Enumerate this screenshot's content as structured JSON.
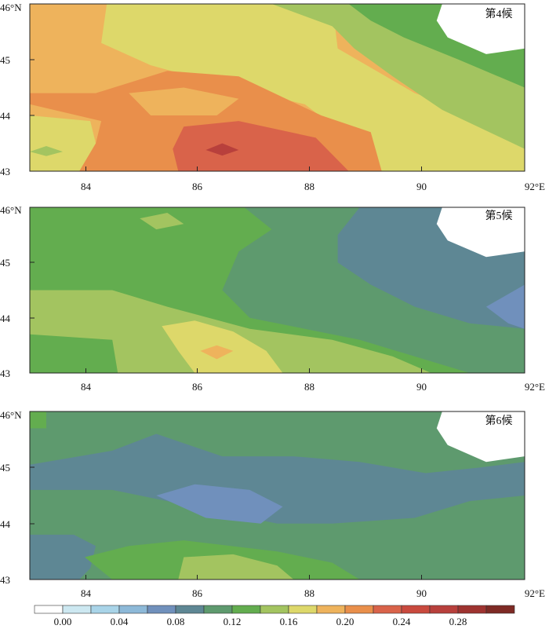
{
  "chart_data": [
    {
      "type": "heatmap",
      "panel_label": "第4候",
      "x_ticks": [
        "84",
        "86",
        "88",
        "90",
        "92°E"
      ],
      "y_ticks": [
        "46°N",
        "45",
        "44",
        "43"
      ],
      "xlim": [
        83,
        92
      ],
      "ylim": [
        43,
        46
      ],
      "regions": [
        {
          "color": "#EEB35C",
          "points": [
            [
              83,
              46
            ],
            [
              92,
              46
            ],
            [
              92,
              43
            ],
            [
              83,
              43
            ]
          ]
        },
        {
          "color": "#DDD86A",
          "points": [
            [
              84.4,
              46
            ],
            [
              88.5,
              46
            ],
            [
              88.6,
              45.2
            ],
            [
              90,
              44.4
            ],
            [
              92,
              43.7
            ],
            [
              92,
              43
            ],
            [
              89.4,
              43
            ],
            [
              88.8,
              43.6
            ],
            [
              88,
              44.2
            ],
            [
              86.3,
              44.6
            ],
            [
              85.2,
              44.9
            ],
            [
              84.3,
              45.3
            ]
          ]
        },
        {
          "color": "#A3C460",
          "points": [
            [
              87.4,
              46
            ],
            [
              92,
              46
            ],
            [
              92,
              43.4
            ],
            [
              90.5,
              44.1
            ],
            [
              89.6,
              44.7
            ],
            [
              88.9,
              45.2
            ],
            [
              88.5,
              45.6
            ]
          ]
        },
        {
          "color": "#63AD4F",
          "points": [
            [
              88.8,
              46
            ],
            [
              92,
              46
            ],
            [
              92,
              44.5
            ],
            [
              90.8,
              45.0
            ],
            [
              89.8,
              45.4
            ],
            [
              89.2,
              45.7
            ]
          ]
        },
        {
          "color": "#E98F4B",
          "points": [
            [
              83,
              44.4
            ],
            [
              84.2,
              44.4
            ],
            [
              85.5,
              44.8
            ],
            [
              86.8,
              44.7
            ],
            [
              88.3,
              44.0
            ],
            [
              89.2,
              43.7
            ],
            [
              89.4,
              43
            ],
            [
              83.6,
              43
            ],
            [
              84.2,
              43.5
            ],
            [
              84.3,
              43.9
            ],
            [
              83,
              44.2
            ]
          ]
        },
        {
          "color": "#EEB35C",
          "points": [
            [
              84.8,
              44.4
            ],
            [
              85.8,
              44.5
            ],
            [
              86.8,
              44.3
            ],
            [
              86.4,
              44.0
            ],
            [
              85.2,
              44.0
            ]
          ]
        },
        {
          "color": "#D9634A",
          "points": [
            [
              85.8,
              43.8
            ],
            [
              86.8,
              43.9
            ],
            [
              88.2,
              43.6
            ],
            [
              88.8,
              43
            ],
            [
              85.7,
              43
            ],
            [
              85.6,
              43.4
            ]
          ]
        },
        {
          "color": "#B8403C",
          "points": [
            [
              86.2,
              43.38
            ],
            [
              86.5,
              43.5
            ],
            [
              86.8,
              43.38
            ],
            [
              86.5,
              43.28
            ]
          ]
        },
        {
          "color": "#DDD86A",
          "points": [
            [
              83,
              44.0
            ],
            [
              84.1,
              43.9
            ],
            [
              84.2,
              43.5
            ],
            [
              83.9,
              43
            ],
            [
              83,
              43
            ]
          ]
        },
        {
          "color": "#A3C460",
          "points": [
            [
              83.0,
              43.35
            ],
            [
              83.3,
              43.45
            ],
            [
              83.6,
              43.35
            ],
            [
              83.3,
              43.27
            ]
          ]
        }
      ],
      "holes": [
        {
          "points": [
            [
              90.5,
              46
            ],
            [
              92,
              46
            ],
            [
              92,
              45.2
            ],
            [
              91.3,
              45.1
            ],
            [
              90.6,
              45.4
            ],
            [
              90.4,
              45.7
            ]
          ]
        }
      ]
    },
    {
      "type": "heatmap",
      "panel_label": "第5候",
      "x_ticks": [
        "84",
        "86",
        "88",
        "90",
        "92°E"
      ],
      "y_ticks": [
        "46°N",
        "45",
        "44",
        "43"
      ],
      "xlim": [
        83,
        92
      ],
      "ylim": [
        43,
        46
      ],
      "regions": [
        {
          "color": "#5E9A6E",
          "points": [
            [
              83,
              46
            ],
            [
              92,
              46
            ],
            [
              92,
              43
            ],
            [
              83,
              43
            ]
          ]
        },
        {
          "color": "#63AD4F",
          "points": [
            [
              83,
              46
            ],
            [
              86.9,
              46
            ],
            [
              87.4,
              45.6
            ],
            [
              86.8,
              45.2
            ],
            [
              86.5,
              44.5
            ],
            [
              87.0,
              44.0
            ],
            [
              88.0,
              43.8
            ],
            [
              89.0,
              43.6
            ],
            [
              90.0,
              43.3
            ],
            [
              91.0,
              43
            ],
            [
              83,
              43
            ]
          ]
        },
        {
          "color": "#5E8794",
          "points": [
            [
              89.0,
              46
            ],
            [
              92,
              46
            ],
            [
              92,
              43.8
            ],
            [
              91.0,
              43.9
            ],
            [
              90.0,
              44.2
            ],
            [
              89.2,
              44.6
            ],
            [
              88.6,
              45.0
            ],
            [
              88.6,
              45.5
            ]
          ]
        },
        {
          "color": "#7090BC",
          "points": [
            [
              91.3,
              44.2
            ],
            [
              92,
              44.6
            ],
            [
              92,
              43.8
            ],
            [
              91.7,
              43.9
            ]
          ]
        },
        {
          "color": "#A3C460",
          "points": [
            [
              83,
              44.5
            ],
            [
              84.5,
              44.5
            ],
            [
              85.5,
              44.2
            ],
            [
              87.0,
              43.8
            ],
            [
              88.5,
              43.6
            ],
            [
              89.6,
              43.3
            ],
            [
              90.3,
              43
            ],
            [
              84.6,
              43
            ],
            [
              84.5,
              43.6
            ],
            [
              83,
              43.7
            ]
          ]
        },
        {
          "color": "#A3C460",
          "points": [
            [
              85.0,
              45.8
            ],
            [
              85.5,
              45.9
            ],
            [
              85.8,
              45.7
            ],
            [
              85.3,
              45.6
            ]
          ]
        },
        {
          "color": "#DDD86A",
          "points": [
            [
              85.4,
              43.85
            ],
            [
              86.0,
              43.95
            ],
            [
              86.7,
              43.75
            ],
            [
              87.3,
              43.4
            ],
            [
              87.6,
              43.0
            ],
            [
              86.0,
              43.0
            ],
            [
              85.7,
              43.4
            ]
          ]
        },
        {
          "color": "#EEB35C",
          "points": [
            [
              86.1,
              43.4
            ],
            [
              86.4,
              43.5
            ],
            [
              86.7,
              43.4
            ],
            [
              86.4,
              43.25
            ]
          ]
        }
      ],
      "holes": [
        {
          "points": [
            [
              90.5,
              46
            ],
            [
              92,
              46
            ],
            [
              92,
              45.2
            ],
            [
              91.3,
              45.1
            ],
            [
              90.6,
              45.4
            ],
            [
              90.4,
              45.7
            ]
          ]
        }
      ]
    },
    {
      "type": "heatmap",
      "panel_label": "第6候",
      "x_ticks": [
        "84",
        "86",
        "88",
        "90",
        "92°E"
      ],
      "y_ticks": [
        "46°N",
        "45",
        "44",
        "43"
      ],
      "xlim": [
        83,
        92
      ],
      "ylim": [
        43,
        46
      ],
      "regions": [
        {
          "color": "#5E9A6E",
          "points": [
            [
              83,
              46
            ],
            [
              92,
              46
            ],
            [
              92,
              43
            ],
            [
              83,
              43
            ]
          ]
        },
        {
          "color": "#5E8794",
          "points": [
            [
              83,
              45.05
            ],
            [
              84.5,
              45.3
            ],
            [
              85.3,
              45.6
            ],
            [
              86.5,
              45.2
            ],
            [
              87.8,
              45.2
            ],
            [
              89.0,
              45.1
            ],
            [
              90.2,
              44.9
            ],
            [
              91.2,
              45.0
            ],
            [
              92,
              45.1
            ],
            [
              92,
              44.5
            ],
            [
              91.0,
              44.4
            ],
            [
              90.0,
              44.1
            ],
            [
              88.5,
              44.0
            ],
            [
              87.5,
              44.0
            ],
            [
              86.0,
              44.3
            ],
            [
              84.5,
              44.6
            ],
            [
              83,
              44.6
            ]
          ]
        },
        {
          "color": "#7090BC",
          "points": [
            [
              85.3,
              44.5
            ],
            [
              86.0,
              44.7
            ],
            [
              87.0,
              44.6
            ],
            [
              87.6,
              44.3
            ],
            [
              87.2,
              44.0
            ],
            [
              86.2,
              44.1
            ]
          ]
        },
        {
          "color": "#5E8794",
          "points": [
            [
              83,
              43.8
            ],
            [
              83.8,
              43.8
            ],
            [
              84.2,
              43.6
            ],
            [
              84.1,
              43.2
            ],
            [
              83.9,
              43
            ],
            [
              83,
              43
            ]
          ]
        },
        {
          "color": "#63AD4F",
          "points": [
            [
              84.0,
              43.4
            ],
            [
              84.8,
              43.6
            ],
            [
              85.8,
              43.7
            ],
            [
              87.5,
              43.5
            ],
            [
              88.5,
              43.3
            ],
            [
              89.0,
              43
            ],
            [
              84.5,
              43
            ]
          ]
        },
        {
          "color": "#A3C460",
          "points": [
            [
              85.8,
              43.4
            ],
            [
              86.7,
              43.45
            ],
            [
              87.5,
              43.25
            ],
            [
              87.8,
              43
            ],
            [
              85.7,
              43
            ]
          ]
        },
        {
          "color": "#63AD4F",
          "points": [
            [
              83,
              46
            ],
            [
              83.3,
              46
            ],
            [
              83.3,
              45.7
            ],
            [
              83,
              45.7
            ]
          ]
        }
      ],
      "holes": [
        {
          "points": [
            [
              90.5,
              46
            ],
            [
              92,
              46
            ],
            [
              92,
              45.2
            ],
            [
              91.3,
              45.1
            ],
            [
              90.6,
              45.4
            ],
            [
              90.4,
              45.7
            ]
          ]
        }
      ]
    }
  ],
  "colorbar": {
    "labels": [
      "0.00",
      "0.04",
      "0.08",
      "0.12",
      "0.16",
      "0.20",
      "0.24",
      "0.28"
    ],
    "colors": [
      "#FFFFFF",
      "#CDE8F1",
      "#A9D4E8",
      "#8DB9D8",
      "#7090BC",
      "#5E8794",
      "#5E9A6E",
      "#63AD4F",
      "#A3C460",
      "#DDD86A",
      "#EEB35C",
      "#E98F4B",
      "#D9634A",
      "#C94A3E",
      "#B8403C",
      "#9E3330",
      "#7E2A24"
    ]
  },
  "theme": {
    "hole_color": "#FFFFFF",
    "frame_color": "#222222"
  }
}
